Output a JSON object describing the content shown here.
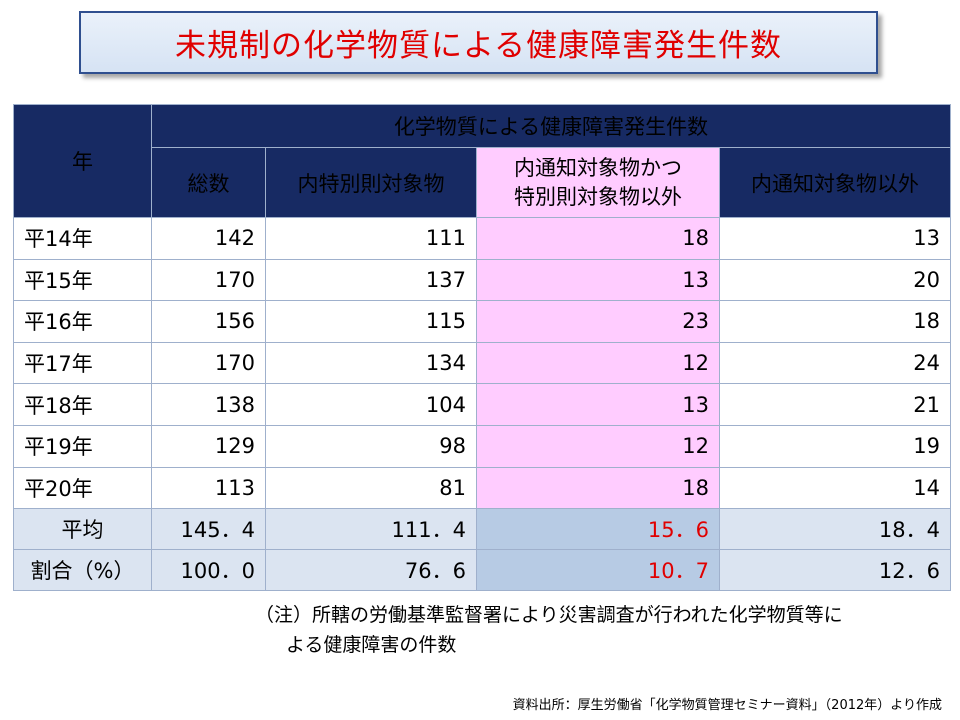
{
  "title": "未規制の化学物質による健康障害発生件数",
  "table": {
    "year_header": "年",
    "group_header": "化学物質による健康障害発生件数",
    "columns": [
      "総数",
      "内特別則対象物",
      "内通知対象物かつ",
      "特別則対象物以外",
      "内通知対象物以外"
    ],
    "rows": [
      {
        "year": "平14年",
        "total": "142",
        "special": "111",
        "notified": "18",
        "other": "13"
      },
      {
        "year": "平15年",
        "total": "170",
        "special": "137",
        "notified": "13",
        "other": "20"
      },
      {
        "year": "平16年",
        "total": "156",
        "special": "115",
        "notified": "23",
        "other": "18"
      },
      {
        "year": "平17年",
        "total": "170",
        "special": "134",
        "notified": "12",
        "other": "24"
      },
      {
        "year": "平18年",
        "total": "138",
        "special": "104",
        "notified": "13",
        "other": "21"
      },
      {
        "year": "平19年",
        "total": "129",
        "special": "98",
        "notified": "12",
        "other": "19"
      },
      {
        "year": "平20年",
        "total": "113",
        "special": "81",
        "notified": "18",
        "other": "14"
      }
    ],
    "average": {
      "label": "平均",
      "total": "145．4",
      "special": "111．4",
      "notified": "15．6",
      "other": "18．4"
    },
    "ratio": {
      "label": "割合（%）",
      "total": "100．0",
      "special": "76．6",
      "notified": "10．7",
      "other": "12．6"
    }
  },
  "note": {
    "line1": "（注）所轄の労働基準監督署により災害調査が行われた化学物質等に",
    "line2": "よる健康障害の件数"
  },
  "source": "資料出所：厚生労働省「化学物質管理セミナー資料」（2012年）より作成",
  "colors": {
    "header_bg": "#172a63",
    "highlight_bg": "#ffccff",
    "highlight_text": "#e00000",
    "summary_bg": "#dbe4f1"
  }
}
